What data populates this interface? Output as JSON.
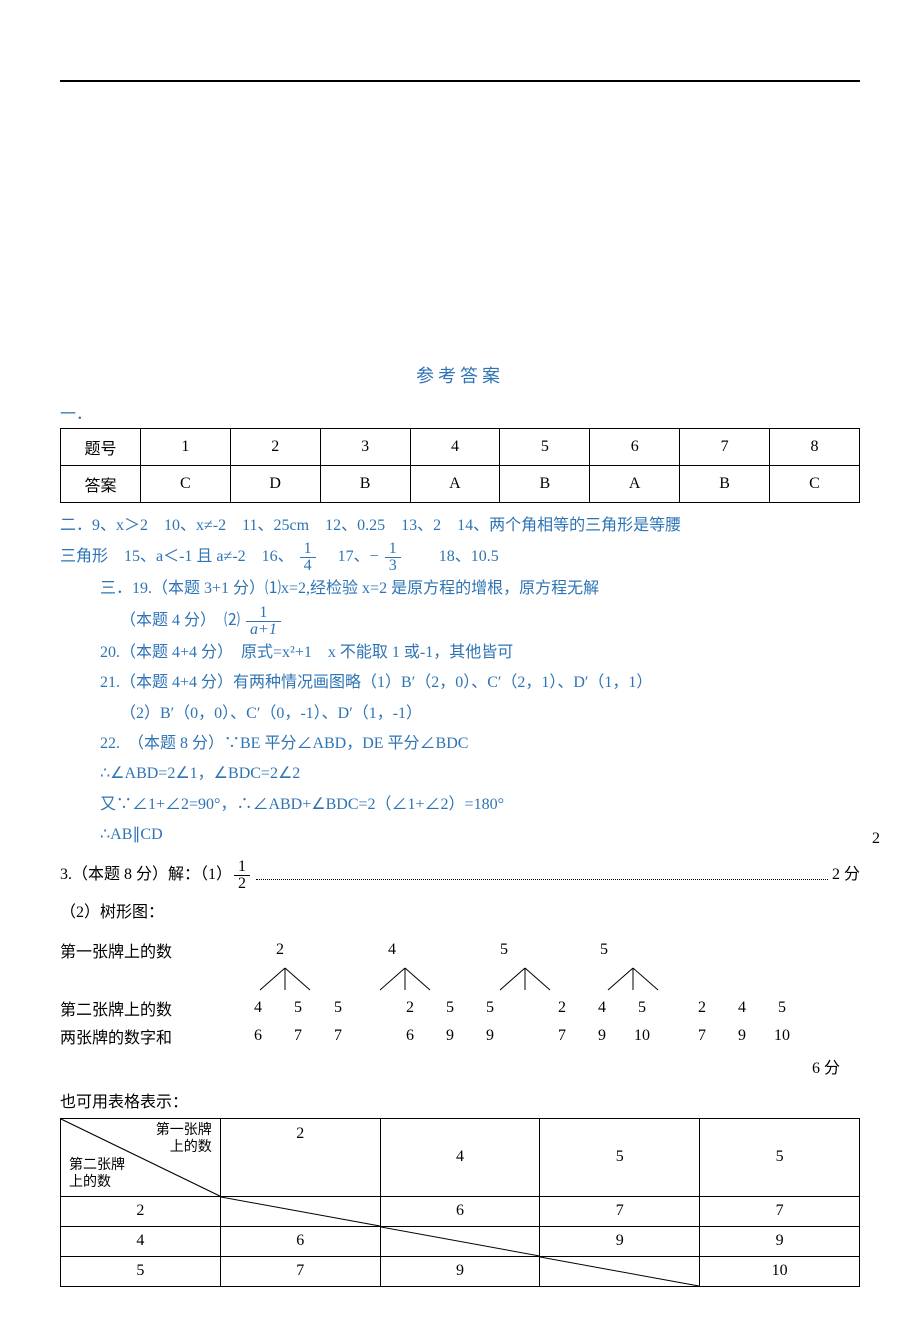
{
  "title": "参考答案",
  "sectionOne": "一．",
  "answerTable": {
    "headers": [
      "题号",
      "1",
      "2",
      "3",
      "4",
      "5",
      "6",
      "7",
      "8"
    ],
    "values": [
      "答案",
      "C",
      "D",
      "B",
      "A",
      "B",
      "A",
      "B",
      "C"
    ]
  },
  "sectionTwo": {
    "prefix": "二．9、x＞2　10、x≠-2　11、25cm　12、0.25　13、2　14、两个角相等的三角形是等腰",
    "line2a": "三角形　15、a＜-1 且 a≠-2　16、",
    "frac16": {
      "num": "1",
      "den": "4"
    },
    "mid17": "　17、−",
    "frac17": {
      "num": "1",
      "den": "3"
    },
    "tail": "　　18、10.5"
  },
  "sectionThree": {
    "q19a": "三．19.（本题 3+1 分）⑴x=2,经检验 x=2 是原方程的增根，原方程无解",
    "q19b_pre": "（本题 4 分）　⑵",
    "q19b_frac": {
      "num": "1",
      "den": "a+1"
    },
    "q20": "20.（本题 4+4 分）　原式=x²+1　x 不能取 1 或-1，其他皆可",
    "q21a": "21.（本题 4+4 分）有两种情况画图略（1）B′（2，0）、C′（2，1）、D′（1，1）",
    "q21b": "（2）B′（0，0）、C′（0，-1）、D′（1，-1）",
    "q22a": "22.　（本题 8 分）∵BE 平分∠ABD，DE 平分∠BDC",
    "q22b": "∴∠ABD=2∠1，∠BDC=2∠2",
    "q22c": "又∵∠1+∠2=90°，∴∠ABD+∠BDC=2（∠1+∠2）=180°",
    "q22d": "∴AB∥CD",
    "q22_margin": "2"
  },
  "q23": {
    "line1a": "3.（本题 8 分）解：（1）",
    "frac": {
      "num": "1",
      "den": "2"
    },
    "line1b": "2 分",
    "line2": "（2）树形图：",
    "labelFirst": "第一张牌上的数",
    "labelSecond": "第二张牌上的数",
    "labelSum": "两张牌的数字和",
    "firstVals": [
      "2",
      "4",
      "5",
      "5"
    ],
    "groups": [
      {
        "second": [
          "4",
          "5",
          "5"
        ],
        "sum": [
          "6",
          "7",
          "7"
        ]
      },
      {
        "second": [
          "2",
          "5",
          "5"
        ],
        "sum": [
          "6",
          "9",
          "9"
        ]
      },
      {
        "second": [
          "2",
          "4",
          "5"
        ],
        "sum": [
          "7",
          "9",
          "10"
        ]
      },
      {
        "second": [
          "2",
          "4",
          "5"
        ],
        "sum": [
          "7",
          "9",
          "10"
        ]
      }
    ],
    "sixPoints": "6 分",
    "alsoTable": "也可用表格表示："
  },
  "crossTable": {
    "headerTop": "第一张牌",
    "headerTop2": "上的数",
    "headerLeft": "第二张牌",
    "headerLeft2": "上的数",
    "cols": [
      "2",
      "4",
      "5",
      "5"
    ],
    "rows": [
      {
        "label": "2",
        "cells": [
          "",
          "6",
          "7",
          "7"
        ],
        "strike": 0
      },
      {
        "label": "4",
        "cells": [
          "6",
          "",
          "9",
          "9"
        ],
        "strike": 1
      },
      {
        "label": "5",
        "cells": [
          "7",
          "9",
          "",
          "10"
        ],
        "strike": 2
      }
    ]
  }
}
